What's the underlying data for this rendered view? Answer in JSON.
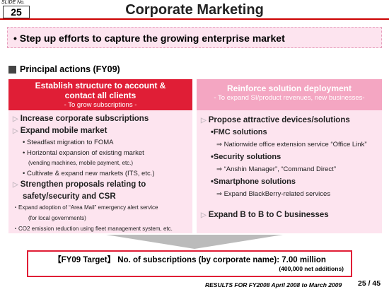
{
  "slide_label": "SLIDE No.",
  "slide_number": "25",
  "title": "Corporate Marketing",
  "headline": "• Step up efforts to capture the growing enterprise market",
  "section_title": "Principal actions (FY09)",
  "left": {
    "header": "Establish structure to account & contact all clients",
    "subheader": "- To grow subscriptions -",
    "items": [
      {
        "text": "Increase corporate subscriptions",
        "style": "main"
      },
      {
        "text": "Expand mobile market",
        "style": "main"
      },
      {
        "text": "• Steadfast migration to FOMA",
        "style": "sub"
      },
      {
        "text": "• Horizontal expansion of existing market",
        "style": "sub"
      },
      {
        "text": "(vending machines, mobile payment, etc.)",
        "style": "note"
      },
      {
        "text": "• Cultivate & expand new markets (ITS, etc.)",
        "style": "sub"
      },
      {
        "text": "Strengthen proposals relating to",
        "style": "main"
      },
      {
        "text": "safety/security and CSR",
        "style": "cont"
      },
      {
        "text": "・Expand adoption of “Area Mail” emergency alert service",
        "style": "small"
      },
      {
        "text": "(for local governments)",
        "style": "note"
      },
      {
        "text": "・CO2 emission reduction using fleet management system, etc.",
        "style": "small"
      }
    ]
  },
  "right": {
    "header": "Reinforce solution deployment",
    "subheader": "- To expand SI/product revenues, new businesses-",
    "items": [
      {
        "text": "Propose attractive devices/solutions",
        "style": "main"
      },
      {
        "text": "•FMC solutions",
        "style": "head"
      },
      {
        "text": "⇒ Nationwide office extension service “Office Link”",
        "style": "arrow"
      },
      {
        "text": "•Security solutions",
        "style": "head"
      },
      {
        "text": "⇒ “Anshin Manager”, “Command Direct”",
        "style": "arrow"
      },
      {
        "text": "•Smartphone solutions",
        "style": "head"
      },
      {
        "text": "⇒ Expand BlackBerry-related services",
        "style": "arrow"
      },
      {
        "text": "Expand B to B to C businesses",
        "style": "final"
      }
    ]
  },
  "target": {
    "text": "【FY09 Target】 No. of subscriptions (by corporate name): 7.00 million",
    "note": "(400,000 net additions)"
  },
  "footer": {
    "text": "RESULTS FOR FY2008  April 2008 to March 2009",
    "page": "25 / 45"
  }
}
